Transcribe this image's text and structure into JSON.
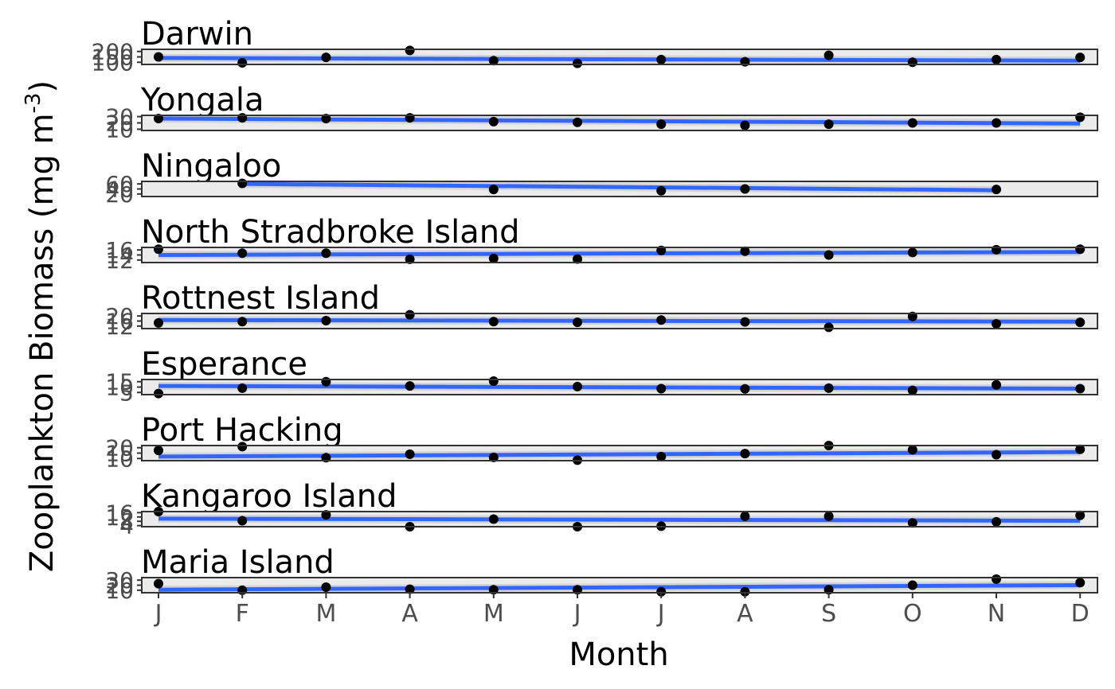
{
  "chart_data": {
    "type": "scatter",
    "xlabel": "Month",
    "ylabel_main": "Zooplankton Biomass (mg m",
    "ylabel_sup": "-3",
    "ylabel_close": ")",
    "x_categories": [
      "J",
      "F",
      "M",
      "A",
      "M",
      "J",
      "J",
      "A",
      "S",
      "O",
      "N",
      "D"
    ],
    "colors": {
      "trend": "#3366ff",
      "ribbon": "#cccccc",
      "point": "#000000",
      "panel": "#ebebeb"
    },
    "panels": [
      {
        "name": "Darwin",
        "yticks": [
          100,
          150,
          200
        ],
        "ylim": [
          80,
          220
        ],
        "points": [
          [
            1,
            150
          ],
          [
            2,
            95
          ],
          [
            3,
            145
          ],
          [
            4,
            210
          ],
          [
            5,
            115
          ],
          [
            6,
            90
          ],
          [
            7,
            125
          ],
          [
            8,
            105
          ],
          [
            9,
            165
          ],
          [
            10,
            100
          ],
          [
            11,
            125
          ],
          [
            12,
            145
          ]
        ],
        "trend": [
          140,
          115
        ]
      },
      {
        "name": "Yongala",
        "yticks": [
          10,
          20,
          30
        ],
        "ylim": [
          8,
          32
        ],
        "points": [
          [
            1,
            27
          ],
          [
            2,
            28
          ],
          [
            3,
            27
          ],
          [
            4,
            28
          ],
          [
            5,
            22
          ],
          [
            6,
            21
          ],
          [
            7,
            18
          ],
          [
            8,
            16
          ],
          [
            9,
            18
          ],
          [
            10,
            20
          ],
          [
            11,
            20
          ],
          [
            12,
            29
          ]
        ],
        "trend": [
          27,
          19
        ]
      },
      {
        "name": "Ningaloo",
        "yticks": [
          20,
          40,
          60
        ],
        "ylim": [
          10,
          70
        ],
        "points": [
          [
            2,
            62
          ],
          [
            5,
            38
          ],
          [
            7,
            33
          ],
          [
            8,
            40
          ],
          [
            11,
            38
          ]
        ],
        "trend": [
          60,
          35
        ]
      },
      {
        "name": "North Stradbroke Island",
        "yticks": [
          12,
          14,
          16
        ],
        "ylim": [
          11,
          17
        ],
        "points": [
          [
            1,
            16.3
          ],
          [
            2,
            14.7
          ],
          [
            3,
            14.7
          ],
          [
            4,
            12.3
          ],
          [
            5,
            12.6
          ],
          [
            6,
            12.4
          ],
          [
            7,
            15.8
          ],
          [
            8,
            15.5
          ],
          [
            9,
            14.0
          ],
          [
            10,
            15.0
          ],
          [
            11,
            16.1
          ],
          [
            12,
            16.3
          ]
        ],
        "trend": [
          14.0,
          15.2
        ]
      },
      {
        "name": "Rottnest Island",
        "yticks": [
          12,
          16,
          20
        ],
        "ylim": [
          10,
          22
        ],
        "points": [
          [
            1,
            14.5
          ],
          [
            2,
            15.5
          ],
          [
            3,
            16.3
          ],
          [
            4,
            21
          ],
          [
            5,
            15.5
          ],
          [
            6,
            15.0
          ],
          [
            7,
            16.8
          ],
          [
            8,
            15.3
          ],
          [
            9,
            11
          ],
          [
            10,
            19.6
          ],
          [
            11,
            13.8
          ],
          [
            12,
            15.0
          ]
        ],
        "trend": [
          16.8,
          15.5
        ]
      },
      {
        "name": "Esperance",
        "yticks": [
          5,
          10,
          15
        ],
        "ylim": [
          3,
          17
        ],
        "points": [
          [
            1,
            4
          ],
          [
            2,
            9
          ],
          [
            3,
            15
          ],
          [
            4,
            11
          ],
          [
            5,
            15.5
          ],
          [
            6,
            10.5
          ],
          [
            7,
            8.5
          ],
          [
            8,
            8.3
          ],
          [
            9,
            9
          ],
          [
            10,
            7
          ],
          [
            11,
            12
          ],
          [
            12,
            8.5
          ]
        ],
        "trend": [
          11,
          8.5
        ]
      },
      {
        "name": "Port Hacking",
        "yticks": [
          10,
          15,
          20
        ],
        "ylim": [
          8,
          22
        ],
        "points": [
          [
            1,
            17.5
          ],
          [
            2,
            21
          ],
          [
            3,
            10.8
          ],
          [
            4,
            14
          ],
          [
            5,
            11
          ],
          [
            6,
            8.5
          ],
          [
            7,
            11.8
          ],
          [
            8,
            14.5
          ],
          [
            9,
            22
          ],
          [
            10,
            18
          ],
          [
            11,
            13.5
          ],
          [
            12,
            18.5
          ]
        ],
        "trend": [
          11.8,
          16
        ]
      },
      {
        "name": "Kangaroo Island",
        "yticks": [
          4,
          8,
          12,
          16
        ],
        "ylim": [
          3,
          17
        ],
        "points": [
          [
            1,
            17
          ],
          [
            2,
            8.5
          ],
          [
            3,
            14
          ],
          [
            4,
            3
          ],
          [
            5,
            10
          ],
          [
            6,
            3
          ],
          [
            7,
            3.5
          ],
          [
            8,
            12.7
          ],
          [
            9,
            12.7
          ],
          [
            10,
            6.5
          ],
          [
            11,
            7.5
          ],
          [
            12,
            13.5
          ]
        ],
        "trend": [
          10.5,
          8.5
        ]
      },
      {
        "name": "Maria Island",
        "yticks": [
          10,
          20,
          30
        ],
        "ylim": [
          5,
          35
        ],
        "points": [
          [
            1,
            23
          ],
          [
            2,
            10
          ],
          [
            3,
            16
          ],
          [
            4,
            12
          ],
          [
            5,
            11
          ],
          [
            6,
            11
          ],
          [
            7,
            7
          ],
          [
            8,
            7
          ],
          [
            9,
            11
          ],
          [
            10,
            20
          ],
          [
            11,
            32
          ],
          [
            12,
            25
          ]
        ],
        "trend": [
          11,
          20
        ]
      }
    ]
  }
}
